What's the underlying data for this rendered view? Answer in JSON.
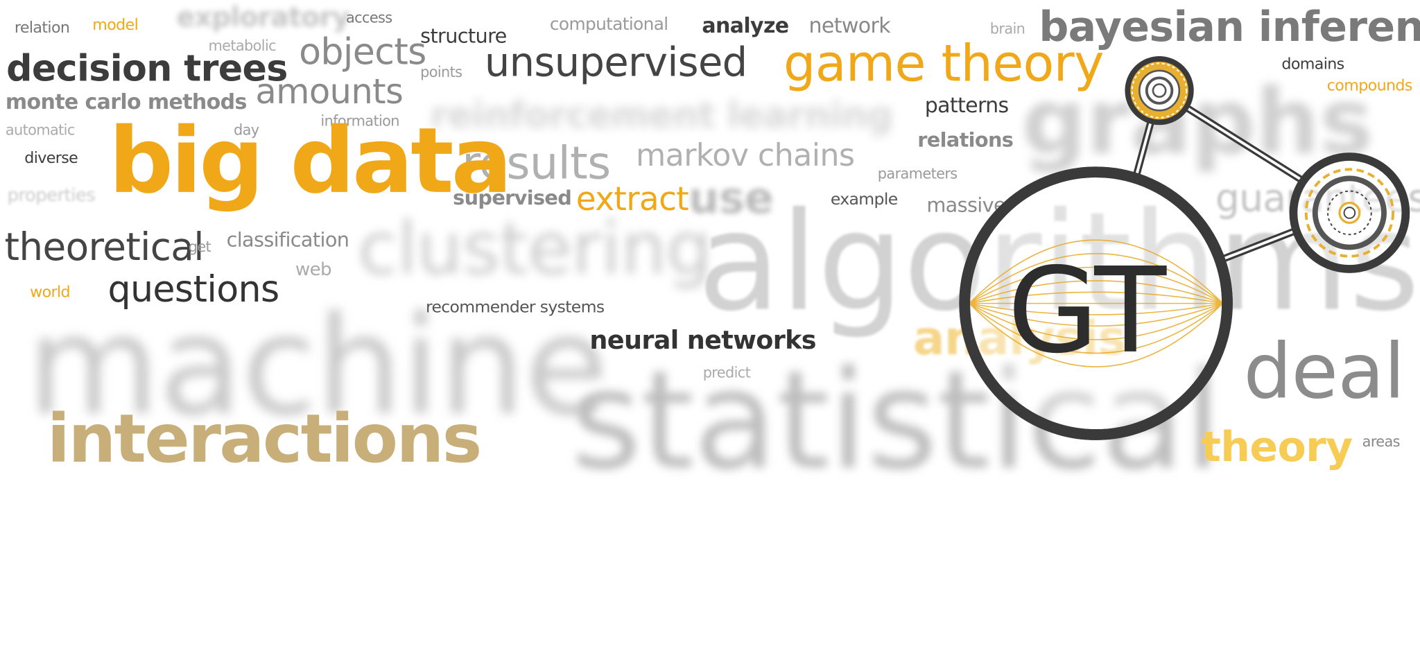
{
  "accent_colors": {
    "orange": "#f0a818",
    "light_orange": "#f7cc55",
    "tan": "#c8ae78",
    "dark_gray": "#3c3c3c",
    "mid_gray": "#9a9a9a",
    "light_gray": "#c8c8c8"
  },
  "words": {
    "relation": "relation",
    "model": "model",
    "exploratory": "exploratory",
    "access": "access",
    "metabolic": "metabolic",
    "computational": "computational",
    "analyze": "analyze",
    "network": "network",
    "brain": "brain",
    "bayesian_inference": "bayesian inference",
    "decision_trees": "decision trees",
    "objects": "objects",
    "structure": "structure",
    "points": "points",
    "unsupervised": "unsupervised",
    "game_theory": "game theory",
    "domains": "domains",
    "compounds": "compounds",
    "monte_carlo_methods": "monte carlo methods",
    "amounts": "amounts",
    "reinforcement_learning": "reinforcement learning",
    "patterns": "patterns",
    "graphs": "graphs",
    "automatic": "automatic",
    "day": "day",
    "information": "information",
    "diverse": "diverse",
    "big_data": "big data",
    "results": "results",
    "markov_chains": "markov chains",
    "relations": "relations",
    "parameters": "parameters",
    "properties": "properties",
    "supervised": "supervised",
    "extract": "extract",
    "use": "use",
    "example": "example",
    "massive": "massive",
    "guarantees": "guarantees",
    "theoretical": "theoretical",
    "get": "get",
    "classification": "classification",
    "clustering": "clustering",
    "algorithms": "algorithms",
    "web": "web",
    "world": "world",
    "questions": "questions",
    "recommender_systems": "recommender systems",
    "analysis": "analysis",
    "machine": "machine",
    "neural_networks": "neural networks",
    "predict": "predict",
    "deal": "deal",
    "statistical": "statistical",
    "interactions": "interactions",
    "theory": "theory",
    "areas": "areas"
  },
  "logo": {
    "label": "GT",
    "icon": "graph-theory-logo-icon"
  }
}
